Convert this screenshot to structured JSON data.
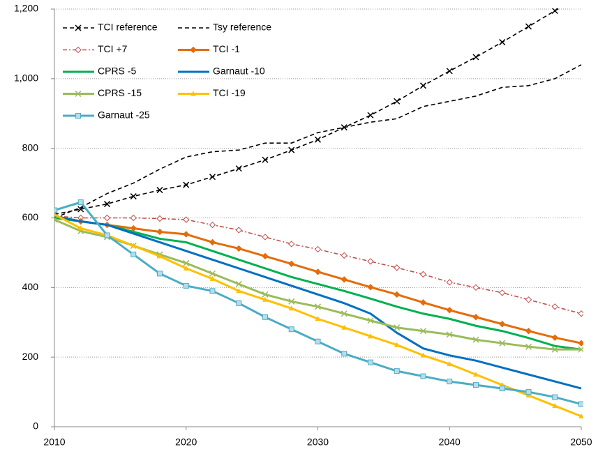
{
  "chart_data": {
    "type": "line",
    "x": [
      2010,
      2012,
      2014,
      2016,
      2018,
      2020,
      2022,
      2024,
      2026,
      2028,
      2030,
      2032,
      2034,
      2036,
      2038,
      2040,
      2042,
      2044,
      2046,
      2048,
      2050
    ],
    "xlim": [
      2010,
      2050
    ],
    "xticks": [
      2010,
      2020,
      2030,
      2040,
      2050
    ],
    "ylim": [
      0,
      1200
    ],
    "yticks": [
      0,
      200,
      400,
      600,
      800,
      {
        "value": 1000,
        "label": "1,000"
      },
      {
        "value": 1200,
        "label": "1,200"
      }
    ],
    "grid": true,
    "legend": "top-left",
    "series": [
      {
        "name": "TCI reference",
        "color": "#000000",
        "dash": "6,4",
        "marker": "x",
        "values": [
          610,
          625,
          640,
          662,
          680,
          695,
          718,
          742,
          767,
          795,
          825,
          860,
          895,
          935,
          980,
          1022,
          1062,
          1105,
          1150,
          1195,
          1240
        ]
      },
      {
        "name": "Tsy reference",
        "color": "#000000",
        "dash": "6,4",
        "marker": "none",
        "values": [
          600,
          630,
          670,
          700,
          740,
          775,
          790,
          795,
          815,
          815,
          845,
          860,
          875,
          885,
          920,
          935,
          950,
          975,
          980,
          1000,
          1040
        ]
      },
      {
        "name": "TCI +7",
        "color": "#C0504D",
        "dash": "6,3,2,3",
        "marker": "diamond-open",
        "values": [
          605,
          600,
          600,
          600,
          598,
          595,
          580,
          565,
          545,
          525,
          510,
          492,
          475,
          457,
          438,
          415,
          400,
          385,
          365,
          345,
          325
        ]
      },
      {
        "name": "TCI -1",
        "color": "#E46C0A",
        "dash": "none",
        "marker": "diamond",
        "values": [
          605,
          590,
          580,
          570,
          560,
          553,
          530,
          512,
          490,
          468,
          445,
          423,
          401,
          380,
          357,
          335,
          315,
          295,
          275,
          256,
          240
        ]
      },
      {
        "name": "CPRS -5",
        "color": "#00B050",
        "dash": "none",
        "marker": "none",
        "values": [
          600,
          590,
          580,
          560,
          540,
          530,
          505,
          480,
          455,
          430,
          410,
          390,
          368,
          345,
          325,
          310,
          290,
          275,
          255,
          232,
          222
        ]
      },
      {
        "name": "Garnaut -10",
        "color": "#0070C0",
        "dash": "none",
        "marker": "none",
        "values": [
          605,
          590,
          580,
          555,
          530,
          505,
          480,
          455,
          430,
          405,
          380,
          355,
          325,
          270,
          225,
          205,
          190,
          170,
          150,
          130,
          110
        ]
      },
      {
        "name": "CPRS -15",
        "color": "#9BBB59",
        "dash": "none",
        "marker": "x",
        "values": [
          595,
          562,
          545,
          520,
          495,
          470,
          440,
          410,
          380,
          360,
          345,
          325,
          305,
          285,
          275,
          265,
          250,
          240,
          230,
          222,
          222
        ]
      },
      {
        "name": "TCI -19",
        "color": "#FFC000",
        "dash": "none",
        "marker": "triangle",
        "values": [
          610,
          570,
          550,
          520,
          490,
          455,
          425,
          390,
          365,
          340,
          310,
          285,
          260,
          235,
          205,
          180,
          150,
          120,
          90,
          60,
          30
        ]
      },
      {
        "name": "Garnaut -25",
        "color": "#4BACC6",
        "dash": "none",
        "marker": "square",
        "values": [
          622,
          645,
          550,
          495,
          440,
          405,
          390,
          355,
          315,
          280,
          245,
          210,
          185,
          160,
          145,
          130,
          120,
          110,
          100,
          85,
          65
        ]
      }
    ]
  }
}
